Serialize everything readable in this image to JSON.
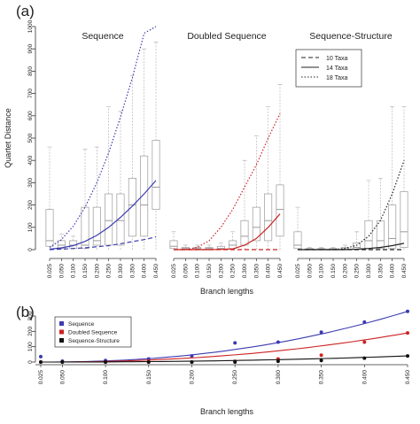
{
  "panel_labels": [
    "(a)",
    "(b)"
  ],
  "chart_data": [
    {
      "type": "boxplot",
      "panel": "(a)",
      "ylabel": "Quartet Distance",
      "xlabel": "Branch lengths",
      "ylim": [
        0,
        1000
      ],
      "yticks": [
        0,
        100,
        200,
        300,
        400,
        500,
        600,
        700,
        800,
        900,
        1000
      ],
      "legend": {
        "placement": "top-right",
        "entries": [
          {
            "name": "10 Taxa",
            "style": "dashed"
          },
          {
            "name": "14 Taxa",
            "style": "solid"
          },
          {
            "name": "18 Taxa",
            "style": "dotted"
          }
        ]
      },
      "subplots": [
        {
          "title": "Sequence",
          "color": "#3b3bb0",
          "categories": [
            "0.025",
            "0.050",
            "0.100",
            "0.150",
            "0.200",
            "0.250",
            "0.300",
            "0.350",
            "0.400",
            "0.450"
          ],
          "boxes": [
            [
              0,
              15,
              40,
              180,
              460
            ],
            [
              0,
              5,
              20,
              40,
              70
            ],
            [
              0,
              5,
              20,
              40,
              60
            ],
            [
              0,
              5,
              20,
              190,
              450
            ],
            [
              0,
              20,
              40,
              190,
              460
            ],
            [
              0,
              20,
              130,
              250,
              640
            ],
            [
              0,
              20,
              130,
              250,
              620
            ],
            [
              0,
              60,
              200,
              320,
              780
            ],
            [
              0,
              60,
              200,
              420,
              900
            ],
            [
              0,
              180,
              280,
              490,
              930
            ]
          ],
          "curves": {
            "10 Taxa": [
              0,
              2,
              5,
              8,
              13,
              18,
              26,
              36,
              45,
              57
            ],
            "14 Taxa": [
              2,
              8,
              18,
              37,
              64,
              100,
              145,
              195,
              250,
              310
            ],
            "18 Taxa": [
              10,
              45,
              105,
              190,
              300,
              435,
              595,
              770,
              970,
              1000
            ]
          }
        },
        {
          "title": "Doubled Sequence",
          "color": "#cc2222",
          "categories": [
            "0.025",
            "0.050",
            "0.100",
            "0.150",
            "0.200",
            "0.250",
            "0.300",
            "0.350",
            "0.400",
            "0.450"
          ],
          "boxes": [
            [
              0,
              5,
              15,
              40,
              80
            ],
            [
              0,
              2,
              5,
              10,
              20
            ],
            [
              0,
              2,
              5,
              10,
              20
            ],
            [
              0,
              2,
              5,
              10,
              20
            ],
            [
              0,
              2,
              5,
              15,
              30
            ],
            [
              0,
              5,
              20,
              40,
              80
            ],
            [
              0,
              20,
              60,
              130,
              400
            ],
            [
              0,
              40,
              100,
              190,
              510
            ],
            [
              0,
              40,
              130,
              250,
              640
            ],
            [
              0,
              60,
              180,
              290,
              740
            ]
          ],
          "curves": {
            "10 Taxa": [
              0,
              0,
              0,
              0,
              0,
              0,
              0,
              0,
              0,
              0
            ],
            "14 Taxa": [
              0,
              0,
              0,
              0,
              1,
              3,
              20,
              50,
              100,
              160
            ],
            "18 Taxa": [
              0,
              0,
              10,
              40,
              100,
              180,
              280,
              380,
              500,
              610
            ]
          }
        },
        {
          "title": "Sequence-Structure",
          "color": "#222222",
          "categories": [
            "0.025",
            "0.050",
            "0.100",
            "0.150",
            "0.200",
            "0.250",
            "0.300",
            "0.350",
            "0.400",
            "0.450"
          ],
          "boxes": [
            [
              0,
              5,
              20,
              80,
              190
            ],
            [
              0,
              1,
              2,
              5,
              10
            ],
            [
              0,
              1,
              2,
              5,
              10
            ],
            [
              0,
              1,
              2,
              5,
              10
            ],
            [
              0,
              1,
              3,
              10,
              20
            ],
            [
              0,
              2,
              10,
              30,
              80
            ],
            [
              0,
              5,
              40,
              130,
              310
            ],
            [
              0,
              5,
              40,
              130,
              320
            ],
            [
              0,
              5,
              50,
              200,
              640
            ],
            [
              0,
              10,
              80,
              260,
              640
            ]
          ],
          "curves": {
            "10 Taxa": [
              0,
              0,
              0,
              0,
              0,
              0,
              0,
              0,
              0,
              0
            ],
            "14 Taxa": [
              0,
              0,
              0,
              0,
              0,
              2,
              5,
              10,
              18,
              28
            ],
            "18 Taxa": [
              0,
              0,
              0,
              0,
              5,
              20,
              60,
              130,
              250,
              400
            ]
          }
        }
      ]
    },
    {
      "type": "scatter",
      "panel": "(b)",
      "xlabel": "Branch lengths",
      "x": [
        0.025,
        0.05,
        0.1,
        0.15,
        0.2,
        0.25,
        0.3,
        0.35,
        0.4,
        0.45
      ],
      "xticks": [
        "0.025",
        "0.050",
        "0.100",
        "0.150",
        "0.200",
        "0.250",
        "0.300",
        "0.350",
        "0.400",
        "0.450"
      ],
      "ylim": [
        0,
        300
      ],
      "yticks": [
        0,
        100,
        200,
        300
      ],
      "legend": {
        "placement": "top-left"
      },
      "series": [
        {
          "name": "Sequence",
          "color": "#3b3bb0",
          "values": [
            35,
            6,
            10,
            20,
            40,
            125,
            130,
            195,
            260,
            330
          ]
        },
        {
          "name": "Doubled Sequence",
          "color": "#cc2222",
          "values": [
            0,
            0,
            0,
            0,
            0,
            5,
            20,
            45,
            130,
            190
          ]
        },
        {
          "name": "Sequence-Structure",
          "color": "#111111",
          "values": [
            0,
            0,
            0,
            0,
            0,
            0,
            5,
            10,
            25,
            40
          ]
        }
      ]
    }
  ]
}
